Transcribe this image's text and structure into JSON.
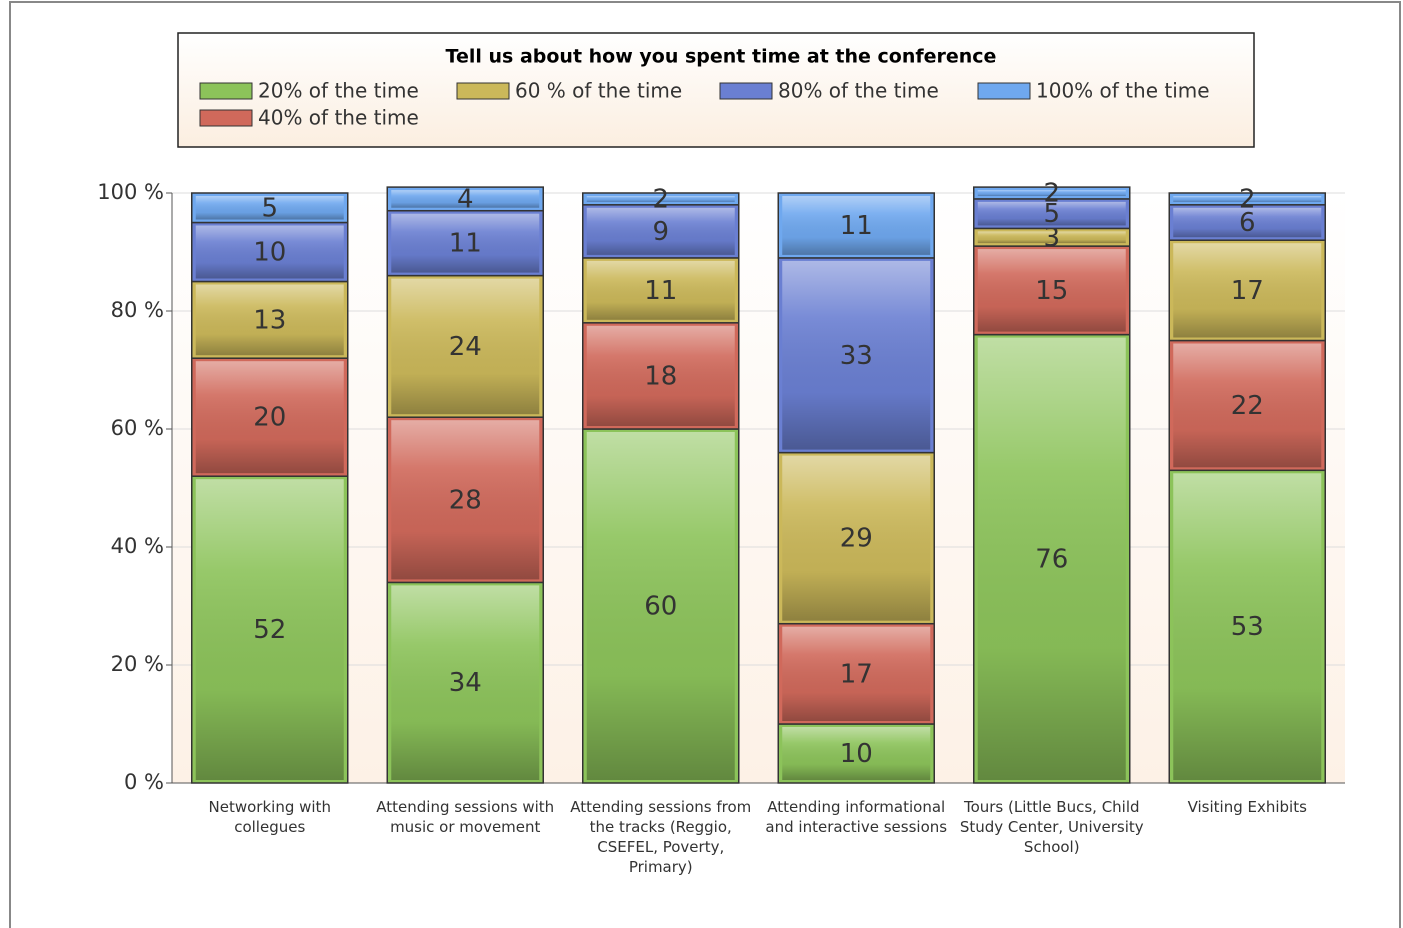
{
  "chart_data": {
    "type": "stacked_bar",
    "legend_title": "Tell us about how you spent time at the conference",
    "categories": [
      "Networking with collegues",
      "Attending sessions with music or movement",
      "Attending sessions from the tracks (Reggio, CSEFEL, Poverty, Primary)",
      "Attending informational and interactive sessions",
      "Tours (Little Bucs, Child Study Center, University School)",
      "Visiting Exhibits"
    ],
    "series": [
      {
        "name": "20% of the time",
        "color": "#8cc35a",
        "values": [
          52,
          34,
          60,
          10,
          76,
          53
        ]
      },
      {
        "name": "40% of the time",
        "color": "#d0695b",
        "values": [
          20,
          28,
          18,
          17,
          15,
          22
        ]
      },
      {
        "name": "60 % of the time",
        "color": "#cbb85a",
        "values": [
          13,
          24,
          11,
          29,
          3,
          17
        ]
      },
      {
        "name": "80% of the time",
        "color": "#6a7fd2",
        "values": [
          10,
          11,
          9,
          33,
          5,
          6
        ]
      },
      {
        "name": "100% of the time",
        "color": "#6fa8ef",
        "values": [
          5,
          4,
          2,
          11,
          2,
          2
        ]
      }
    ],
    "ylim": [
      0,
      100
    ],
    "yticks": [
      {
        "value": 0,
        "label": "0 %"
      },
      {
        "value": 20,
        "label": "20 %"
      },
      {
        "value": 40,
        "label": "40 %"
      },
      {
        "value": 60,
        "label": "60 %"
      },
      {
        "value": 80,
        "label": "80 %"
      },
      {
        "value": 100,
        "label": "100 %"
      }
    ],
    "grid": true
  }
}
